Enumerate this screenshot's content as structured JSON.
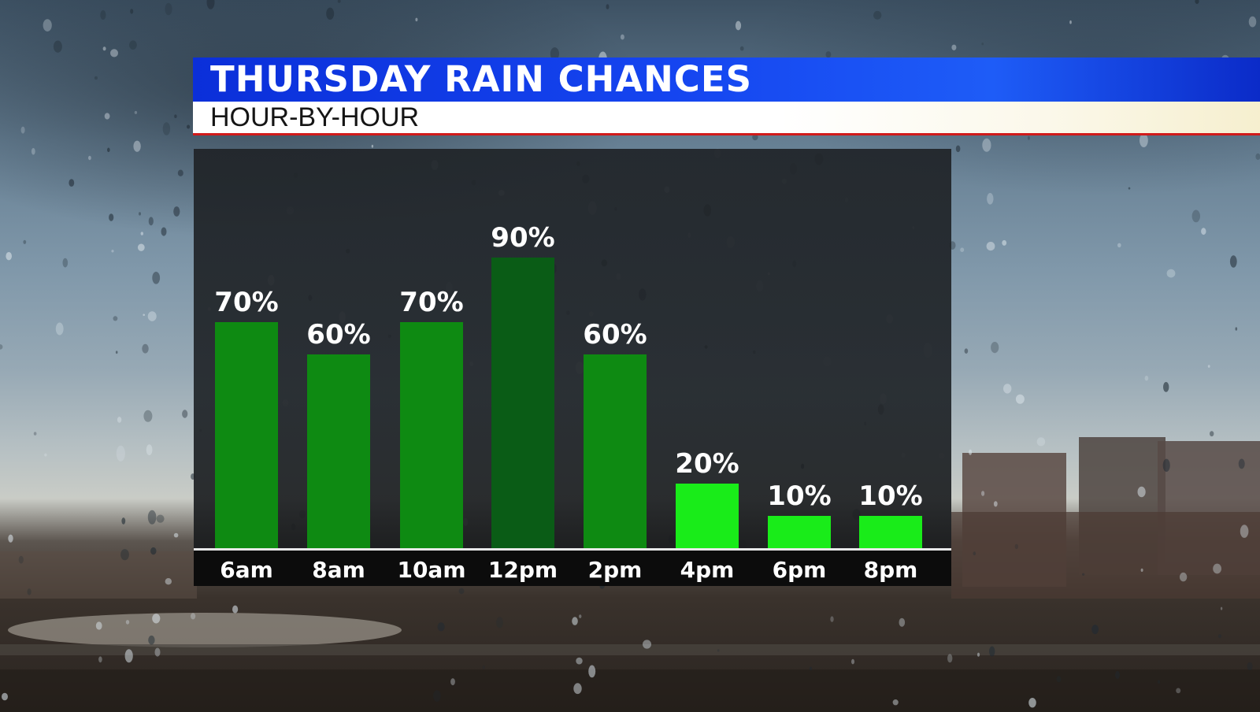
{
  "title": "THURSDAY RAIN CHANCES",
  "subtitle": "HOUR-BY-HOUR",
  "colors": {
    "title_bar": "#1545f0",
    "accent_line": "#d11a1a",
    "bar_default": "#0e8a12",
    "bar_peak": "#0a5c16",
    "bar_low": "#19ec19"
  },
  "chart_data": {
    "type": "bar",
    "title": "THURSDAY RAIN CHANCES",
    "subtitle": "HOUR-BY-HOUR",
    "categories": [
      "6am",
      "8am",
      "10am",
      "12pm",
      "2pm",
      "4pm",
      "6pm",
      "8pm"
    ],
    "values": [
      70,
      60,
      70,
      90,
      60,
      20,
      10,
      10
    ],
    "labels": [
      "70%",
      "60%",
      "70%",
      "90%",
      "60%",
      "20%",
      "10%",
      "10%"
    ],
    "bar_colors": [
      "#0e8a12",
      "#0e8a12",
      "#0e8a12",
      "#0a5c16",
      "#0e8a12",
      "#19ec19",
      "#19ec19",
      "#19ec19"
    ],
    "ylim": [
      0,
      100
    ],
    "xlabel": "",
    "ylabel": "",
    "grid": false,
    "legend": false
  }
}
